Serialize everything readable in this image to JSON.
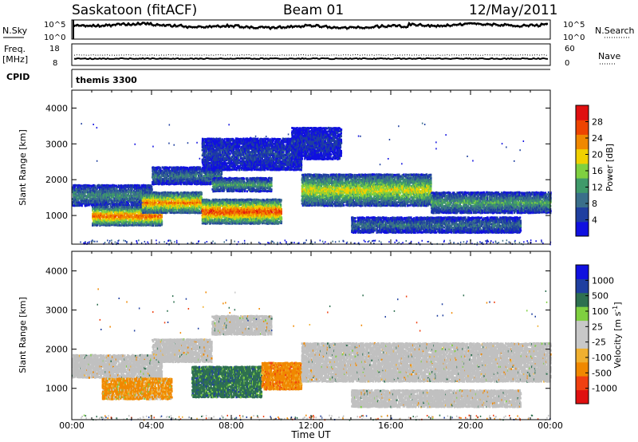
{
  "header": {
    "station": "Saskatoon (fitACF)",
    "beam": "Beam 01",
    "date": "12/May/2011"
  },
  "strips": {
    "nsky_label": "N.Sky",
    "nsky_ticks": [
      "10^5",
      "10^0"
    ],
    "nsearch_label": "N.Search",
    "nsearch_ticks": [
      "10^5",
      "10^0"
    ],
    "freq_label": "Freq.",
    "freq_unit": "[MHz]",
    "freq_ticks": [
      "18",
      "8"
    ],
    "nave_label": "Nave",
    "nave_ticks": [
      "60",
      "0"
    ],
    "cpid_label": "CPID",
    "cpid_value": "themis 3300"
  },
  "colors": {
    "power_scale": [
      "#1010e0",
      "#1f3fa0",
      "#3a6f8a",
      "#3f9a6a",
      "#7fd040",
      "#f0d000",
      "#f08800",
      "#ee4400",
      "#e01010"
    ],
    "velocity_scale": [
      "#e01010",
      "#f04010",
      "#f08800",
      "#f0b030",
      "#c8c8c8",
      "#c8c8c8",
      "#7fd040",
      "#2e7050",
      "#1f3fa0",
      "#1010e0"
    ],
    "ground_scatter": "#c0c0c0"
  },
  "x_axis": {
    "ticks": [
      "00:00",
      "04:00",
      "08:00",
      "12:00",
      "16:00",
      "20:00",
      "00:00"
    ],
    "label": "Time UT"
  },
  "chart_data": [
    {
      "type": "heatmap",
      "name": "power",
      "ylabel": "Slant Range [km]",
      "ylim": [
        200,
        4500
      ],
      "y_ticks": [
        1000,
        2000,
        3000,
        4000
      ],
      "xlim_hours": [
        0,
        24
      ],
      "colorbar": {
        "label": "Power [dB]",
        "min": 0,
        "max": 32,
        "ticks": [
          "4",
          "8",
          "12",
          "16",
          "20",
          "24",
          "28"
        ]
      },
      "bands": [
        {
          "t0": 0.0,
          "t1": 4.0,
          "r0": 1300,
          "r1": 1900,
          "value": 12
        },
        {
          "t0": 1.0,
          "t1": 4.5,
          "r0": 750,
          "r1": 1300,
          "value": 28
        },
        {
          "t0": 3.5,
          "t1": 6.5,
          "r0": 1100,
          "r1": 1700,
          "value": 26
        },
        {
          "t0": 6.5,
          "t1": 10.5,
          "r0": 800,
          "r1": 1500,
          "value": 29
        },
        {
          "t0": 4.0,
          "t1": 7.5,
          "r0": 1900,
          "r1": 2400,
          "value": 10
        },
        {
          "t0": 7.0,
          "t1": 10.0,
          "r0": 1700,
          "r1": 2100,
          "value": 14
        },
        {
          "t0": 11.5,
          "t1": 18.0,
          "r0": 1300,
          "r1": 2200,
          "value": 20
        },
        {
          "t0": 18.0,
          "t1": 24.0,
          "r0": 1100,
          "r1": 1700,
          "value": 14
        },
        {
          "t0": 14.0,
          "t1": 22.5,
          "r0": 550,
          "r1": 1000,
          "value": 10
        },
        {
          "t0": 6.5,
          "t1": 11.5,
          "r0": 2300,
          "r1": 3200,
          "value": 6
        },
        {
          "t0": 11.0,
          "t1": 13.5,
          "r0": 2600,
          "r1": 3500,
          "value": 5
        }
      ]
    },
    {
      "type": "heatmap",
      "name": "velocity",
      "ylabel": "Slant Range [km]",
      "ylim": [
        200,
        4500
      ],
      "y_ticks": [
        1000,
        2000,
        3000,
        4000
      ],
      "xlim_hours": [
        0,
        24
      ],
      "colorbar": {
        "label": "Velocity [m s^-1]",
        "min": -1200,
        "max": 1200,
        "ticks": [
          "1000",
          "500",
          "100",
          "25",
          "-25",
          "-100",
          "-500",
          "-1000"
        ]
      },
      "bands": [
        {
          "t0": 0.0,
          "t1": 4.5,
          "r0": 1300,
          "r1": 1900,
          "value": 0,
          "ground_scatter": true
        },
        {
          "t0": 1.5,
          "t1": 5.0,
          "r0": 750,
          "r1": 1300,
          "value": -200
        },
        {
          "t0": 4.0,
          "t1": 7.0,
          "r0": 1700,
          "r1": 2300,
          "value": 0,
          "ground_scatter": true
        },
        {
          "t0": 6.0,
          "t1": 9.5,
          "r0": 800,
          "r1": 1600,
          "value": 300
        },
        {
          "t0": 9.5,
          "t1": 11.5,
          "r0": 1000,
          "r1": 1700,
          "value": -300
        },
        {
          "t0": 11.5,
          "t1": 24.0,
          "r0": 1200,
          "r1": 2200,
          "value": 0,
          "ground_scatter": true
        },
        {
          "t0": 14.0,
          "t1": 22.5,
          "r0": 550,
          "r1": 1000,
          "value": 0,
          "ground_scatter": true
        },
        {
          "t0": 7.0,
          "t1": 10.0,
          "r0": 2400,
          "r1": 2900,
          "value": 0,
          "ground_scatter": true
        }
      ]
    }
  ]
}
